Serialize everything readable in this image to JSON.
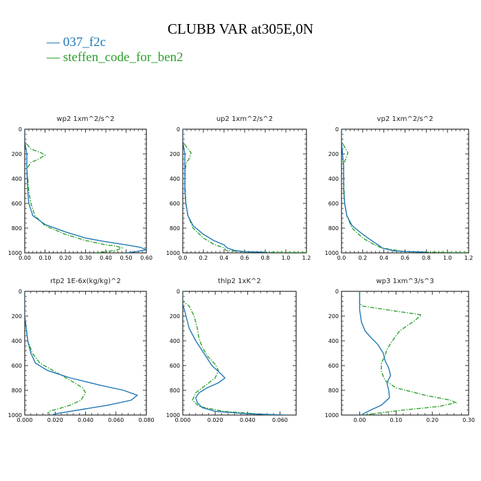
{
  "title": "CLUBB VAR at305E,0N",
  "legend": [
    {
      "label": "037_f2c",
      "color": "#1f77b4",
      "dash": "solid"
    },
    {
      "label": "steffen_code_for_ben2",
      "color": "#2ca02c",
      "dash": "dashdot"
    }
  ],
  "chart_data": [
    {
      "type": "line",
      "title": "wp2  1xm^2/s^2",
      "xlim": [
        0,
        0.6
      ],
      "ylim": [
        1000,
        0
      ],
      "xticks": [
        "0.00",
        "0.10",
        "0.20",
        "0.30",
        "0.40",
        "0.50",
        "0.60"
      ],
      "xtick_values": [
        0,
        0.1,
        0.2,
        0.3,
        0.4,
        0.5,
        0.6
      ],
      "yticks": [
        "0",
        "200",
        "400",
        "600",
        "800",
        "1000"
      ],
      "series": [
        {
          "name": "037_f2c",
          "points": [
            [
              0.0,
              0
            ],
            [
              0.0,
              100
            ],
            [
              0.005,
              150
            ],
            [
              0.01,
              200
            ],
            [
              0.01,
              300
            ],
            [
              0.012,
              400
            ],
            [
              0.015,
              500
            ],
            [
              0.02,
              600
            ],
            [
              0.04,
              700
            ],
            [
              0.1,
              770
            ],
            [
              0.2,
              830
            ],
            [
              0.3,
              880
            ],
            [
              0.4,
              910
            ],
            [
              0.5,
              935
            ],
            [
              0.57,
              955
            ],
            [
              0.6,
              975
            ],
            [
              0.55,
              990
            ],
            [
              0.5,
              1000
            ]
          ]
        },
        {
          "name": "steffen_code_for_ben2",
          "points": [
            [
              0.0,
              0
            ],
            [
              0.0,
              100
            ],
            [
              0.03,
              160
            ],
            [
              0.08,
              190
            ],
            [
              0.1,
              210
            ],
            [
              0.07,
              240
            ],
            [
              0.03,
              270
            ],
            [
              0.01,
              320
            ],
            [
              0.015,
              400
            ],
            [
              0.02,
              500
            ],
            [
              0.03,
              600
            ],
            [
              0.05,
              700
            ],
            [
              0.1,
              780
            ],
            [
              0.2,
              850
            ],
            [
              0.3,
              900
            ],
            [
              0.4,
              935
            ],
            [
              0.45,
              945
            ],
            [
              0.48,
              960
            ],
            [
              0.45,
              980
            ],
            [
              0.4,
              990
            ],
            [
              0.35,
              1000
            ]
          ]
        }
      ]
    },
    {
      "type": "line",
      "title": "up2  1xm^2/s^2",
      "xlim": [
        0,
        1.2
      ],
      "ylim": [
        1000,
        0
      ],
      "xticks": [
        "0.0",
        "0.2",
        "0.4",
        "0.6",
        "0.8",
        "1.0",
        "1.2"
      ],
      "xtick_values": [
        0,
        0.2,
        0.4,
        0.6,
        0.8,
        1.0,
        1.2
      ],
      "yticks": [
        "0",
        "200",
        "400",
        "600",
        "800",
        "1000"
      ],
      "series": [
        {
          "name": "037_f2c",
          "points": [
            [
              0.0,
              0
            ],
            [
              0.0,
              100
            ],
            [
              0.02,
              200
            ],
            [
              0.02,
              300
            ],
            [
              0.02,
              400
            ],
            [
              0.02,
              500
            ],
            [
              0.03,
              600
            ],
            [
              0.05,
              700
            ],
            [
              0.1,
              780
            ],
            [
              0.2,
              850
            ],
            [
              0.3,
              900
            ],
            [
              0.4,
              935
            ],
            [
              0.43,
              960
            ],
            [
              0.5,
              980
            ],
            [
              0.6,
              990
            ],
            [
              0.8,
              995
            ]
          ]
        },
        {
          "name": "steffen_code_for_ben2",
          "points": [
            [
              0.0,
              0
            ],
            [
              0.0,
              100
            ],
            [
              0.05,
              160
            ],
            [
              0.08,
              190
            ],
            [
              0.06,
              240
            ],
            [
              0.03,
              280
            ],
            [
              0.02,
              400
            ],
            [
              0.03,
              600
            ],
            [
              0.05,
              700
            ],
            [
              0.1,
              800
            ],
            [
              0.2,
              880
            ],
            [
              0.3,
              930
            ],
            [
              0.4,
              960
            ],
            [
              0.42,
              980
            ],
            [
              0.6,
              992
            ],
            [
              1.0,
              996
            ],
            [
              1.2,
              997
            ]
          ]
        }
      ]
    },
    {
      "type": "line",
      "title": "vp2  1xm^2/s^2",
      "xlim": [
        0,
        1.2
      ],
      "ylim": [
        1000,
        0
      ],
      "xticks": [
        "0.0",
        "0.2",
        "0.4",
        "0.6",
        "0.8",
        "1.0",
        "1.2"
      ],
      "xtick_values": [
        0,
        0.2,
        0.4,
        0.6,
        0.8,
        1.0,
        1.2
      ],
      "yticks": [
        "0",
        "200",
        "400",
        "600",
        "800",
        "1000"
      ],
      "series": [
        {
          "name": "037_f2c",
          "points": [
            [
              0.0,
              0
            ],
            [
              0.0,
              100
            ],
            [
              0.01,
              200
            ],
            [
              0.02,
              300
            ],
            [
              0.02,
              400
            ],
            [
              0.02,
              500
            ],
            [
              0.03,
              600
            ],
            [
              0.05,
              700
            ],
            [
              0.1,
              780
            ],
            [
              0.2,
              850
            ],
            [
              0.3,
              910
            ],
            [
              0.37,
              950
            ],
            [
              0.38,
              960
            ],
            [
              0.5,
              985
            ],
            [
              0.8,
              995
            ]
          ]
        },
        {
          "name": "steffen_code_for_ben2",
          "points": [
            [
              0.0,
              0
            ],
            [
              0.0,
              100
            ],
            [
              0.04,
              160
            ],
            [
              0.06,
              190
            ],
            [
              0.04,
              240
            ],
            [
              0.02,
              280
            ],
            [
              0.02,
              400
            ],
            [
              0.03,
              600
            ],
            [
              0.05,
              700
            ],
            [
              0.1,
              800
            ],
            [
              0.2,
              880
            ],
            [
              0.3,
              930
            ],
            [
              0.38,
              960
            ],
            [
              0.6,
              990
            ],
            [
              1.0,
              996
            ],
            [
              1.2,
              997
            ]
          ]
        }
      ]
    },
    {
      "type": "line",
      "title": "rtp2  1E-6x(kg/kg)^2",
      "xlim": [
        0,
        0.08
      ],
      "ylim": [
        1000,
        0
      ],
      "xticks": [
        "0.000",
        "0.020",
        "0.040",
        "0.060",
        "0.080"
      ],
      "xtick_values": [
        0,
        0.02,
        0.04,
        0.06,
        0.08
      ],
      "yticks": [
        "0",
        "200",
        "400",
        "600",
        "800",
        "1000"
      ],
      "series": [
        {
          "name": "037_f2c",
          "points": [
            [
              0.0,
              0
            ],
            [
              0.0,
              200
            ],
            [
              0.001,
              300
            ],
            [
              0.002,
              400
            ],
            [
              0.004,
              500
            ],
            [
              0.007,
              580
            ],
            [
              0.015,
              640
            ],
            [
              0.03,
              700
            ],
            [
              0.05,
              760
            ],
            [
              0.065,
              800
            ],
            [
              0.074,
              840
            ],
            [
              0.07,
              880
            ],
            [
              0.055,
              920
            ],
            [
              0.04,
              950
            ],
            [
              0.025,
              980
            ],
            [
              0.02,
              990
            ],
            [
              0.018,
              1000
            ]
          ]
        },
        {
          "name": "steffen_code_for_ben2",
          "points": [
            [
              0.0,
              0
            ],
            [
              0.0,
              200
            ],
            [
              0.001,
              300
            ],
            [
              0.002,
              400
            ],
            [
              0.005,
              500
            ],
            [
              0.01,
              580
            ],
            [
              0.02,
              650
            ],
            [
              0.03,
              720
            ],
            [
              0.038,
              780
            ],
            [
              0.04,
              820
            ],
            [
              0.037,
              880
            ],
            [
              0.03,
              920
            ],
            [
              0.022,
              950
            ],
            [
              0.016,
              970
            ],
            [
              0.015,
              990
            ]
          ]
        }
      ]
    },
    {
      "type": "line",
      "title": "thlp2  1xK^2",
      "xlim": [
        0,
        0.07
      ],
      "ylim": [
        1000,
        0
      ],
      "xticks": [
        "0.000",
        "0.020",
        "0.040",
        "0.060"
      ],
      "xtick_values": [
        0,
        0.02,
        0.04,
        0.06
      ],
      "yticks": [
        "0",
        "200",
        "400",
        "600",
        "800",
        "1000"
      ],
      "series": [
        {
          "name": "037_f2c",
          "points": [
            [
              0.0,
              0
            ],
            [
              0.0,
              100
            ],
            [
              0.002,
              200
            ],
            [
              0.004,
              300
            ],
            [
              0.008,
              400
            ],
            [
              0.013,
              500
            ],
            [
              0.018,
              600
            ],
            [
              0.023,
              660
            ],
            [
              0.026,
              700
            ],
            [
              0.022,
              740
            ],
            [
              0.015,
              780
            ],
            [
              0.01,
              820
            ],
            [
              0.008,
              860
            ],
            [
              0.009,
              900
            ],
            [
              0.012,
              940
            ],
            [
              0.02,
              970
            ],
            [
              0.04,
              990
            ],
            [
              0.063,
              1000
            ]
          ]
        },
        {
          "name": "steffen_code_for_ben2",
          "points": [
            [
              0.0,
              0
            ],
            [
              0.0,
              80
            ],
            [
              0.004,
              120
            ],
            [
              0.007,
              200
            ],
            [
              0.009,
              300
            ],
            [
              0.01,
              380
            ],
            [
              0.012,
              450
            ],
            [
              0.015,
              520
            ],
            [
              0.02,
              590
            ],
            [
              0.022,
              640
            ],
            [
              0.02,
              700
            ],
            [
              0.014,
              760
            ],
            [
              0.008,
              820
            ],
            [
              0.006,
              880
            ],
            [
              0.01,
              930
            ],
            [
              0.025,
              970
            ],
            [
              0.05,
              995
            ],
            [
              0.063,
              1000
            ]
          ]
        }
      ]
    },
    {
      "type": "line",
      "title": "wp3  1xm^3/s^3",
      "xlim": [
        -0.05,
        0.3
      ],
      "ylim": [
        1000,
        0
      ],
      "xticks": [
        "0.00",
        "0.10",
        "0.20",
        "0.30"
      ],
      "xtick_values": [
        0,
        0.1,
        0.2,
        0.3
      ],
      "yticks": [
        "0",
        "200",
        "400",
        "600",
        "800",
        "1000"
      ],
      "series": [
        {
          "name": "037_f2c",
          "points": [
            [
              0.0,
              0
            ],
            [
              0.0,
              150
            ],
            [
              0.005,
              250
            ],
            [
              0.015,
              320
            ],
            [
              0.03,
              370
            ],
            [
              0.05,
              430
            ],
            [
              0.065,
              500
            ],
            [
              0.07,
              560
            ],
            [
              0.08,
              620
            ],
            [
              0.085,
              680
            ],
            [
              0.075,
              740
            ],
            [
              0.08,
              800
            ],
            [
              0.082,
              860
            ],
            [
              0.06,
              920
            ],
            [
              0.03,
              960
            ],
            [
              0.01,
              990
            ],
            [
              0.005,
              1000
            ]
          ]
        },
        {
          "name": "steffen_code_for_ben2",
          "points": [
            [
              0.0,
              0
            ],
            [
              0.0,
              100
            ],
            [
              0.01,
              120
            ],
            [
              0.1,
              160
            ],
            [
              0.17,
              190
            ],
            [
              0.15,
              240
            ],
            [
              0.11,
              320
            ],
            [
              0.09,
              400
            ],
            [
              0.075,
              470
            ],
            [
              0.07,
              520
            ],
            [
              0.06,
              580
            ],
            [
              0.06,
              650
            ],
            [
              0.07,
              720
            ],
            [
              0.1,
              780
            ],
            [
              0.18,
              840
            ],
            [
              0.25,
              880
            ],
            [
              0.265,
              900
            ],
            [
              0.22,
              930
            ],
            [
              0.12,
              960
            ],
            [
              0.05,
              985
            ],
            [
              0.01,
              1000
            ]
          ]
        }
      ]
    }
  ]
}
